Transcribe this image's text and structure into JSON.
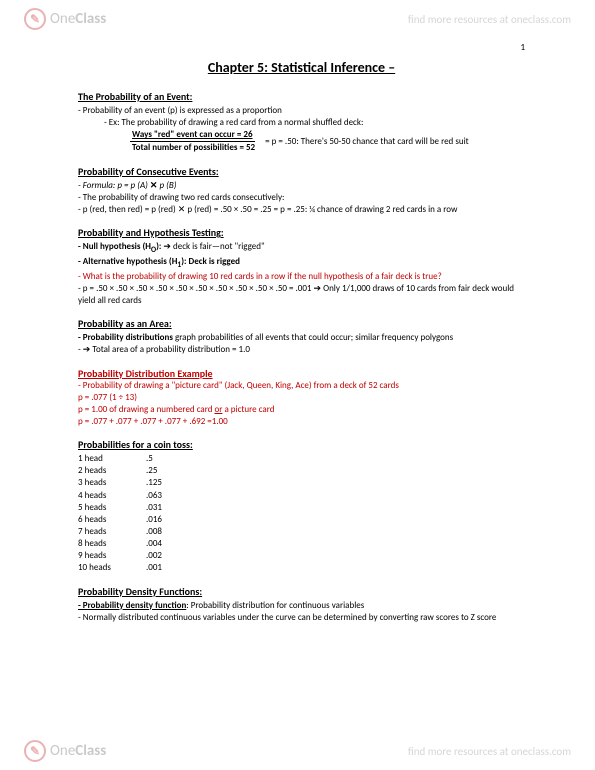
{
  "watermark": {
    "logo_one": "One",
    "logo_class": "Class",
    "link": "find more resources at oneclass.com"
  },
  "pagenum": "1",
  "title": "Chapter 5: Statistical Inference –",
  "s1": {
    "title": "The Probability of an Event:",
    "l1": "- Probability of an event (p) is expressed as a proportion",
    "l2": "- Ex: The probability of drawing a red card from a normal shuffled deck:",
    "frac_num": "Ways \"red\" event can occur  = 26",
    "frac_den": "Total number of possibilities = 52",
    "rhs": "=   p = .50: There's 50-50 chance that card will be  red suit"
  },
  "s2": {
    "title": "Probability of Consecutive Events:",
    "l1_a": "- Formula: p = p (A) ",
    "l1_b": "✕",
    "l1_c": " p (B)",
    "l2": "- The probability of drawing two red cards consecutively:",
    "l3": "- p (red, then red) = p (red) ✕ p (red) = .50 × .50 = .25 = p = .25: ¼ chance of drawing 2 red cards in a row"
  },
  "s3": {
    "title": "Probability and Hypothesis Testing:",
    "l1a": "- Null hypothesis (H",
    "l1b": "O",
    "l1c": "): ",
    "l1d": "➔ deck is fair—not \"rigged\"",
    "l2a": "- Alternative hypothesis (H",
    "l2b": "1",
    "l2c": "): Deck is rigged",
    "l3": "- What is the probability of drawing 10 red cards in a row if the null hypothesis of a fair deck is true?",
    "l4a": "- p = .50 × .50 × .50 × .50 × .50 × .50 × .50 × .50 × .50 × .50 = .001 ",
    "l4b": "➔ Only 1/1,000 draws of 10 cards from fair deck would yield all red cards"
  },
  "s4": {
    "title": "Probability as an Area:",
    "l1a": "- Probability distributions ",
    "l1b": "graph probabilities of all events that could occur; similar frequency polygons",
    "l2": "- ➔ Total area of a probability distribution = 1.0"
  },
  "s5": {
    "title": "Probability Distribution Example",
    "l1": "- Probability of drawing a \"picture card\" (Jack, Queen, King, Ace) from a deck of 52 cards",
    "l2": "p = .077 (1 ÷ 13)",
    "l3a": "p = 1.00 of drawing a numbered card ",
    "l3b": "or",
    "l3c": " a picture card",
    "l4": "p = .077 + .077 + .077 + .077 + .692 =1.00"
  },
  "s6": {
    "title": "Probabilities for a coin toss:",
    "rows": [
      {
        "h": "1 head",
        "v": ".5"
      },
      {
        "h": "2 heads",
        "v": ".25"
      },
      {
        "h": "3 heads",
        "v": ".125"
      },
      {
        "h": "4 heads",
        "v": ".063"
      },
      {
        "h": "5 heads",
        "v": ".031"
      },
      {
        "h": "6 heads",
        "v": ".016"
      },
      {
        "h": "7 heads",
        "v": ".008"
      },
      {
        "h": "8 heads",
        "v": ".004"
      },
      {
        "h": "9 heads",
        "v": ".002"
      },
      {
        "h": "10 heads",
        "v": ".001"
      }
    ]
  },
  "s7": {
    "title": "Probability Density Functions:",
    "l1a": "- Probability density function",
    "l1b": ": Probability distribution for continuous variables",
    "l2": "- Normally distributed continuous variables under the curve can be determined by converting raw scores to Z score"
  }
}
